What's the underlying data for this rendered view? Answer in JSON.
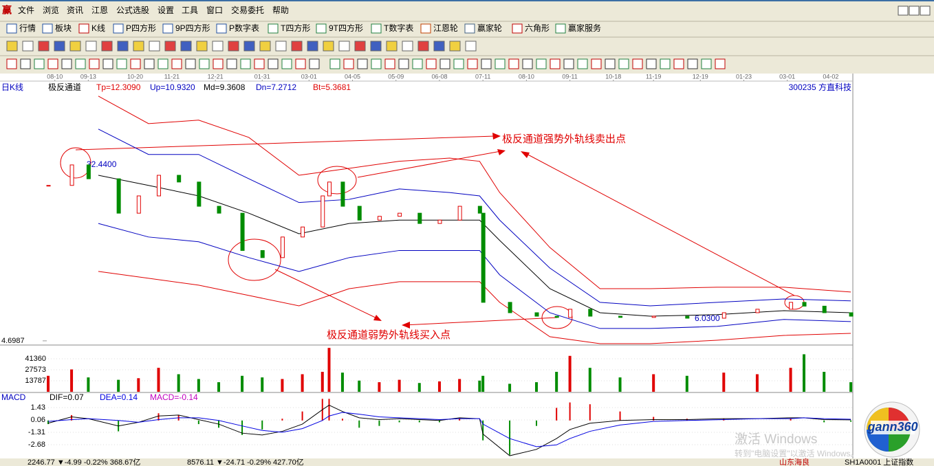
{
  "menu": {
    "logo": "赢",
    "items": [
      "文件",
      "浏览",
      "资讯",
      "江恩",
      "公式选股",
      "设置",
      "工具",
      "窗口",
      "交易委托",
      "帮助"
    ]
  },
  "toolbar": [
    "行情",
    "板块",
    "K线",
    "P四方形",
    "9P四方形",
    "P数字表",
    "T四方形",
    "9T四方形",
    "T数字表",
    "江恩轮",
    "赢家轮",
    "六角形",
    "赢家服务"
  ],
  "chart_data": [
    {
      "type": "candlestick",
      "period": "日K线",
      "indicator": "极反通道",
      "indicator_values": [
        "Tp=12.3090",
        "Up=10.9320",
        "Md=9.3608",
        "Dn=7.2712",
        "Bt=5.3681"
      ],
      "stock": "300235  方直科技",
      "log_scale": true,
      "ylim": [
        4.56,
        74.7
      ],
      "yticks": [
        4.6987
      ],
      "xlim": [
        -14.4,
        240.6
      ],
      "xticks": [
        {
          "value": 2,
          "label": "08-10"
        },
        {
          "value": 12,
          "label": "09-13"
        },
        {
          "value": 26,
          "label": "10-20"
        },
        {
          "value": 37,
          "label": "11-21"
        },
        {
          "value": 50,
          "label": "12-21"
        },
        {
          "value": 64,
          "label": "01-31"
        },
        {
          "value": 78,
          "label": "03-01"
        },
        {
          "value": 91,
          "label": "04-05"
        },
        {
          "value": 104,
          "label": "05-09"
        },
        {
          "value": 117,
          "label": "06-08"
        },
        {
          "value": 130,
          "label": "07-11"
        },
        {
          "value": 143,
          "label": "08-10"
        },
        {
          "value": 156,
          "label": "09-11"
        },
        {
          "value": 169,
          "label": "10-18"
        },
        {
          "value": 181,
          "label": "11-19"
        },
        {
          "value": 195,
          "label": "12-19"
        },
        {
          "value": 208,
          "label": "01-23"
        },
        {
          "value": 221,
          "label": "03-01"
        },
        {
          "value": 234,
          "label": "04-02"
        }
      ],
      "up_color": "#e00000",
      "down_color": "#008c00",
      "x": [
        0,
        7,
        12,
        21,
        27,
        33,
        39,
        45,
        51,
        58,
        64,
        70,
        76,
        82,
        84,
        88,
        93,
        99,
        105,
        111,
        117,
        123,
        129,
        130,
        138,
        146,
        152,
        156,
        162,
        171,
        181,
        191,
        202,
        212,
        222,
        226,
        232,
        240
      ],
      "close": [
        24.6,
        30.6,
        26.4,
        18.3,
        22.0,
        27.4,
        25.5,
        19.7,
        18.3,
        12.3,
        11.4,
        14.2,
        15.8,
        22.0,
        25.5,
        19.7,
        17.0,
        17.7,
        18.3,
        16.4,
        17.0,
        19.7,
        18.3,
        7.08,
        6.34,
        6.11,
        6.03,
        6.58,
        6.11,
        6.03,
        6.11,
        5.98,
        6.34,
        6.58,
        7.08,
        6.8,
        6.34,
        6.11
      ],
      "bands": [
        {
          "color": "#e00000",
          "x": [
            15,
            30,
            45,
            60,
            75,
            90,
            105,
            120,
            129,
            135,
            150,
            165,
            180,
            200,
            220,
            240
          ],
          "values": [
            63.7,
            47.5,
            49.3,
            41.0,
            27.4,
            29.5,
            31.8,
            32.9,
            31.8,
            22.8,
            12.7,
            8.19,
            8.19,
            8.32,
            8.32,
            7.9
          ]
        },
        {
          "color": "#0000c0",
          "x": [
            15,
            30,
            45,
            60,
            75,
            90,
            105,
            120,
            129,
            135,
            150,
            165,
            180,
            200,
            220,
            240
          ],
          "values": [
            44.8,
            34.2,
            34.2,
            26.4,
            20.5,
            21.2,
            23.7,
            22.8,
            22.0,
            17.0,
            10.2,
            7.08,
            6.82,
            7.08,
            7.34,
            7.19
          ]
        },
        {
          "color": "#000000",
          "x": [
            15,
            30,
            45,
            60,
            75,
            90,
            105,
            120,
            129,
            135,
            150,
            165,
            180,
            200,
            220,
            240
          ],
          "values": [
            27.4,
            24.6,
            22.0,
            18.3,
            14.7,
            16.4,
            17.0,
            17.0,
            17.0,
            13.7,
            8.19,
            6.34,
            6.11,
            6.21,
            6.48,
            6.34
          ]
        },
        {
          "color": "#0000c0",
          "x": [
            15,
            30,
            45,
            60,
            75,
            90,
            105,
            120,
            129,
            135,
            150,
            165,
            180,
            200,
            220,
            240
          ],
          "values": [
            16.4,
            14.2,
            13.5,
            11.4,
            9.84,
            11.4,
            12.3,
            12.3,
            12.3,
            9.49,
            6.34,
            5.36,
            5.36,
            5.48,
            5.9,
            5.77
          ]
        },
        {
          "color": "#e00000",
          "x": [
            15,
            30,
            45,
            60,
            75,
            90,
            105,
            120,
            129,
            135,
            150,
            165,
            180,
            200,
            220,
            240
          ],
          "values": [
            9.84,
            9.15,
            8.5,
            7.62,
            6.82,
            8.19,
            8.82,
            8.82,
            8.82,
            7.08,
            4.91,
            4.56,
            4.56,
            4.73,
            4.98,
            5.09
          ]
        }
      ],
      "max_label": "32.4400",
      "min_label": "6.0300",
      "annotations": [
        "极反通道强势外轨线卖出点",
        "极反通道弱势外轨线买入点"
      ]
    },
    {
      "type": "bar",
      "ylim": [
        0,
        56000
      ],
      "yticks": [
        13787,
        27573,
        41360
      ],
      "values": [
        20000,
        28000,
        18000,
        15000,
        17000,
        30000,
        22000,
        16000,
        12000,
        20000,
        18000,
        16000,
        22000,
        25000,
        55000,
        24000,
        14000,
        12000,
        15000,
        11000,
        13000,
        16000,
        14000,
        20000,
        10000,
        12000,
        25000,
        45000,
        30000,
        18000,
        22000,
        20000,
        24000,
        22000,
        30000,
        47000,
        25000,
        12000
      ]
    },
    {
      "type": "macd",
      "title": "MACD",
      "legend": [
        {
          "label": "DIF=0.07",
          "color": "#000000"
        },
        {
          "label": "DEA=0.14",
          "color": "#0000e0"
        },
        {
          "label": "MACD=-0.14",
          "color": "#c000c0"
        }
      ],
      "ylim": [
        -4.05,
        2.04
      ],
      "yticks": [
        1.43,
        0.06,
        -1.31,
        -2.68
      ],
      "dif": [
        -0.3,
        0.4,
        0.2,
        -0.6,
        -0.2,
        0.5,
        0.6,
        0.1,
        -0.4,
        -1.4,
        -1.6,
        -1.2,
        -0.4,
        1.2,
        1.7,
        1.0,
        0.3,
        0.1,
        0.2,
        0.1,
        0.0,
        0.3,
        0.2,
        -1.5,
        -3.9,
        -3.2,
        -2.0,
        -1.0,
        -0.3,
        0.0,
        0.1,
        0.1,
        0.2,
        0.2,
        0.3,
        0.3,
        0.1,
        0.07
      ],
      "dea": [
        -0.1,
        0.1,
        0.2,
        0.0,
        -0.2,
        0.1,
        0.3,
        0.3,
        0.0,
        -0.6,
        -1.1,
        -1.3,
        -0.9,
        0.0,
        0.5,
        0.9,
        0.7,
        0.4,
        0.3,
        0.2,
        0.1,
        0.2,
        0.2,
        -0.4,
        -2.0,
        -2.9,
        -2.7,
        -2.0,
        -1.2,
        -0.5,
        -0.1,
        0.0,
        0.1,
        0.2,
        0.2,
        0.3,
        0.2,
        0.14
      ],
      "hist": [
        -0.4,
        0.6,
        0,
        -1.2,
        0,
        0.8,
        0.6,
        -0.4,
        -0.8,
        -1.6,
        -1.0,
        0.2,
        1.0,
        2.4,
        2.4,
        0.2,
        -0.8,
        -0.6,
        -0.2,
        -0.2,
        -0.2,
        0.2,
        0,
        -2.2,
        -3.8,
        -0.6,
        1.4,
        2.0,
        1.8,
        1.0,
        0.4,
        0.2,
        0.2,
        0,
        0.2,
        0,
        -0.2,
        -0.14
      ]
    }
  ],
  "status": {
    "items": [
      "2246.77 ▼-4.99 -0.22% 368.67亿",
      "8576.11 ▼-24.71 -0.29% 427.70亿"
    ],
    "region": "山东海良",
    "index": "SH1A0001 上证指数"
  },
  "watermark": [
    "激活 Windows",
    "转到\"电脑设置\"以激活 Windows。"
  ],
  "logo": "gann360"
}
